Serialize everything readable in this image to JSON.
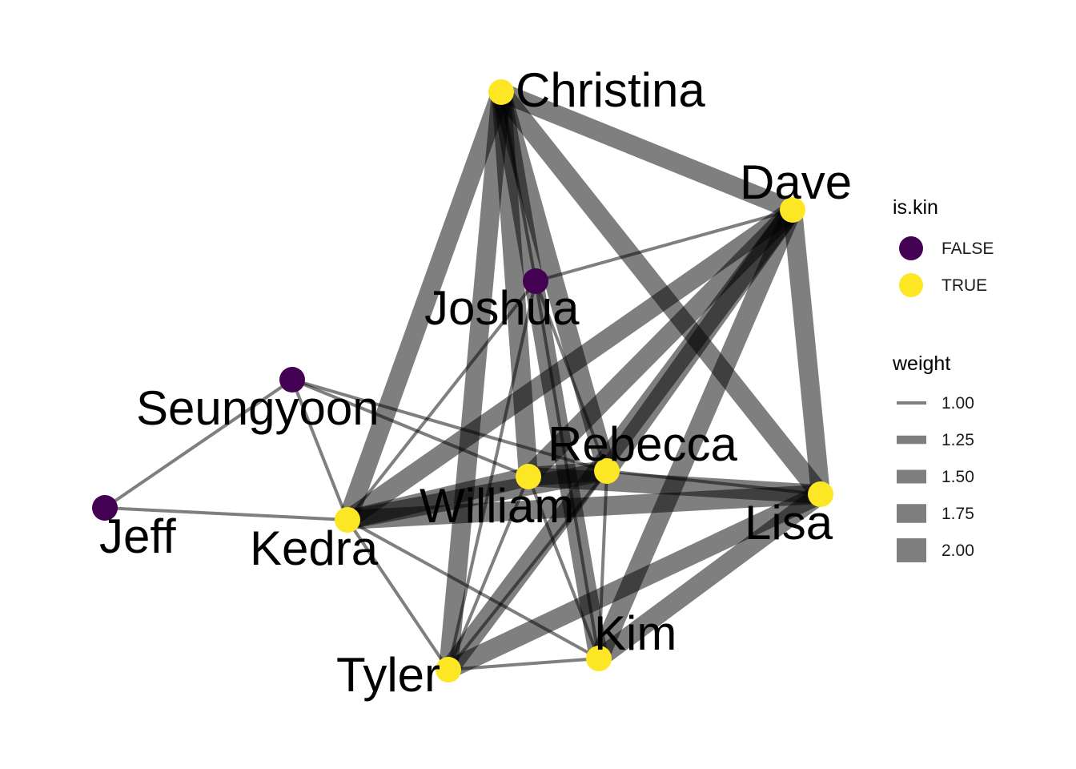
{
  "graph": {
    "nodes": [
      {
        "id": "Christina",
        "label": "Christina",
        "is_kin": true
      },
      {
        "id": "Dave",
        "label": "Dave",
        "is_kin": true
      },
      {
        "id": "Joshua",
        "label": "Joshua",
        "is_kin": false
      },
      {
        "id": "Seungyoon",
        "label": "Seungyoon",
        "is_kin": false
      },
      {
        "id": "Rebecca",
        "label": "Rebecca",
        "is_kin": true
      },
      {
        "id": "William",
        "label": "William",
        "is_kin": true
      },
      {
        "id": "Lisa",
        "label": "Lisa",
        "is_kin": true
      },
      {
        "id": "Jeff",
        "label": "Jeff",
        "is_kin": false
      },
      {
        "id": "Kedra",
        "label": "Kedra",
        "is_kin": true
      },
      {
        "id": "Kim",
        "label": "Kim",
        "is_kin": true
      },
      {
        "id": "Tyler",
        "label": "Tyler",
        "is_kin": true
      }
    ],
    "edges": [
      {
        "source": "Christina",
        "target": "Dave",
        "weight": 2
      },
      {
        "source": "Christina",
        "target": "Lisa",
        "weight": 2
      },
      {
        "source": "Christina",
        "target": "Kedra",
        "weight": 2
      },
      {
        "source": "Christina",
        "target": "Tyler",
        "weight": 2
      },
      {
        "source": "Christina",
        "target": "Kim",
        "weight": 2
      },
      {
        "source": "Christina",
        "target": "William",
        "weight": 2
      },
      {
        "source": "Christina",
        "target": "Rebecca",
        "weight": 2
      },
      {
        "source": "Christina",
        "target": "Joshua",
        "weight": 1
      },
      {
        "source": "Dave",
        "target": "Lisa",
        "weight": 2
      },
      {
        "source": "Dave",
        "target": "Kedra",
        "weight": 2
      },
      {
        "source": "Dave",
        "target": "Tyler",
        "weight": 2
      },
      {
        "source": "Dave",
        "target": "Kim",
        "weight": 2
      },
      {
        "source": "Dave",
        "target": "William",
        "weight": 2
      },
      {
        "source": "Dave",
        "target": "Rebecca",
        "weight": 2
      },
      {
        "source": "Dave",
        "target": "Joshua",
        "weight": 1
      },
      {
        "source": "Lisa",
        "target": "Kedra",
        "weight": 2
      },
      {
        "source": "Lisa",
        "target": "Tyler",
        "weight": 2
      },
      {
        "source": "Lisa",
        "target": "Kim",
        "weight": 2
      },
      {
        "source": "Lisa",
        "target": "William",
        "weight": 2
      },
      {
        "source": "Lisa",
        "target": "Rebecca",
        "weight": 1
      },
      {
        "source": "Kedra",
        "target": "William",
        "weight": 2
      },
      {
        "source": "Kedra",
        "target": "Rebecca",
        "weight": 2
      },
      {
        "source": "Kedra",
        "target": "Tyler",
        "weight": 1
      },
      {
        "source": "Kedra",
        "target": "Kim",
        "weight": 1
      },
      {
        "source": "Kedra",
        "target": "Joshua",
        "weight": 1
      },
      {
        "source": "Kedra",
        "target": "Seungyoon",
        "weight": 1
      },
      {
        "source": "Kedra",
        "target": "Jeff",
        "weight": 1
      },
      {
        "source": "Tyler",
        "target": "William",
        "weight": 1
      },
      {
        "source": "Tyler",
        "target": "Rebecca",
        "weight": 1
      },
      {
        "source": "Tyler",
        "target": "Kim",
        "weight": 1
      },
      {
        "source": "Tyler",
        "target": "Joshua",
        "weight": 1
      },
      {
        "source": "Kim",
        "target": "William",
        "weight": 1
      },
      {
        "source": "Kim",
        "target": "Rebecca",
        "weight": 1
      },
      {
        "source": "Kim",
        "target": "Joshua",
        "weight": 1
      },
      {
        "source": "William",
        "target": "Rebecca",
        "weight": 2
      },
      {
        "source": "Seungyoon",
        "target": "William",
        "weight": 1
      },
      {
        "source": "Seungyoon",
        "target": "Rebecca",
        "weight": 1
      },
      {
        "source": "Seungyoon",
        "target": "Jeff",
        "weight": 1
      },
      {
        "source": "Joshua",
        "target": "Rebecca",
        "weight": 1
      }
    ]
  },
  "legend": {
    "color_title": "is.kin",
    "color_items": [
      {
        "label": "FALSE",
        "color": "#440154"
      },
      {
        "label": "TRUE",
        "color": "#FDE725"
      }
    ],
    "size_title": "weight",
    "size_items": [
      {
        "label": "1.00",
        "weight": 1.0
      },
      {
        "label": "1.25",
        "weight": 1.25
      },
      {
        "label": "1.50",
        "weight": 1.5
      },
      {
        "label": "1.75",
        "weight": 1.75
      },
      {
        "label": "2.00",
        "weight": 2.0
      }
    ]
  },
  "colors": {
    "edge": "#000000",
    "kin_false": "#440154",
    "kin_true": "#FDE725"
  }
}
